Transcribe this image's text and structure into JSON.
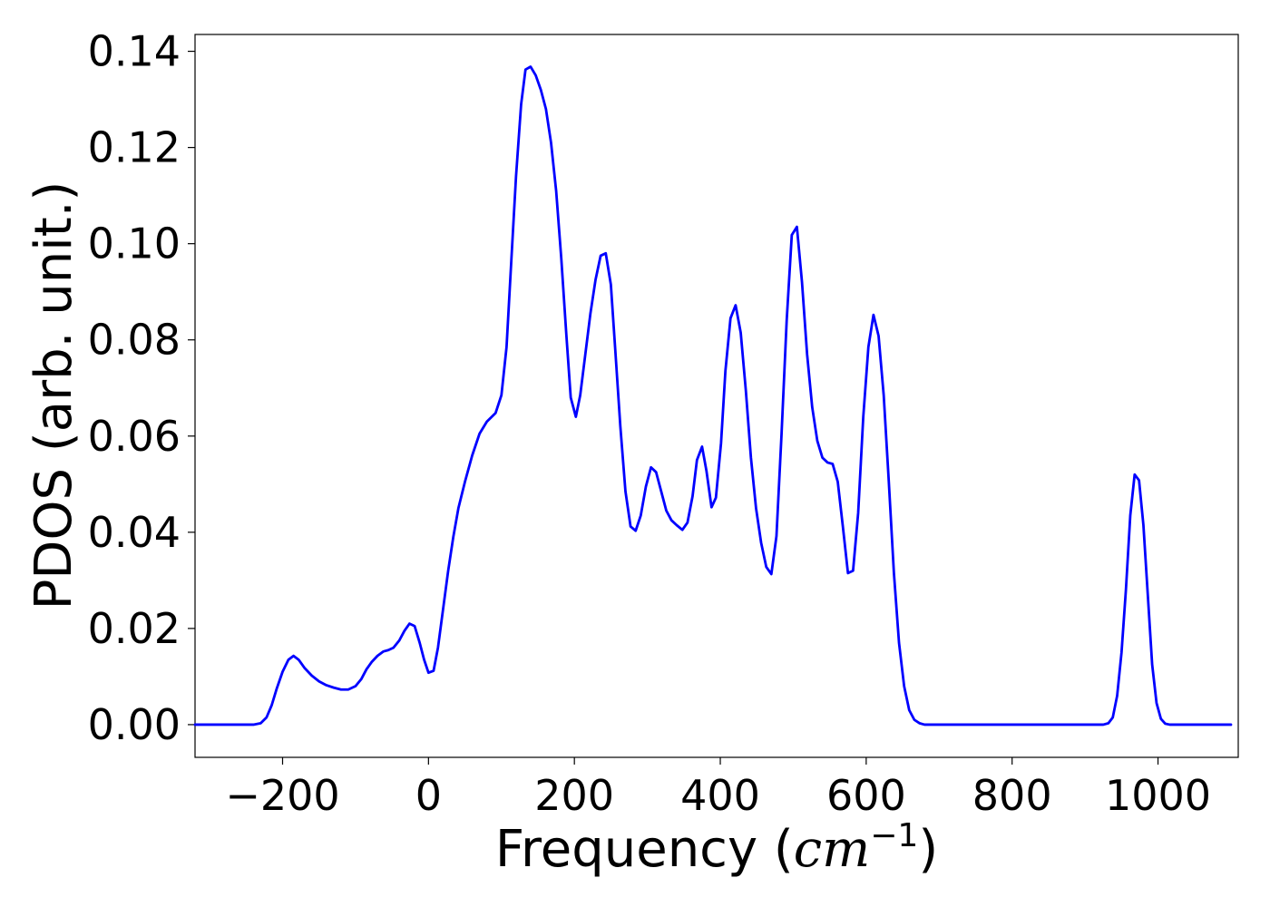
{
  "chart_data": {
    "type": "line",
    "title": "",
    "xlabel_text": "Frequency (",
    "xlabel_math": "cm",
    "xlabel_sup": "−1",
    "xlabel_close": ")",
    "ylabel": "PDOS (arb. unit.)",
    "xlim": [
      -320,
      1110
    ],
    "ylim": [
      -0.0068,
      0.1435
    ],
    "grid": false,
    "line_color": "#0000ff",
    "xticks": [
      {
        "value": -200,
        "label": "−200"
      },
      {
        "value": 0,
        "label": "0"
      },
      {
        "value": 200,
        "label": "200"
      },
      {
        "value": 400,
        "label": "400"
      },
      {
        "value": 600,
        "label": "600"
      },
      {
        "value": 800,
        "label": "800"
      },
      {
        "value": 1000,
        "label": "1000"
      }
    ],
    "yticks": [
      {
        "value": 0.0,
        "label": "0.00"
      },
      {
        "value": 0.02,
        "label": "0.02"
      },
      {
        "value": 0.04,
        "label": "0.04"
      },
      {
        "value": 0.06,
        "label": "0.06"
      },
      {
        "value": 0.08,
        "label": "0.08"
      },
      {
        "value": 0.1,
        "label": "0.10"
      },
      {
        "value": 0.12,
        "label": "0.12"
      },
      {
        "value": 0.14,
        "label": "0.14"
      }
    ],
    "series": [
      {
        "points": [
          [
            -320,
            0
          ],
          [
            -240,
            0
          ],
          [
            -230,
            0.0003
          ],
          [
            -222,
            0.0015
          ],
          [
            -215,
            0.004
          ],
          [
            -208,
            0.0075
          ],
          [
            -200,
            0.011
          ],
          [
            -192,
            0.0135
          ],
          [
            -185,
            0.0143
          ],
          [
            -178,
            0.0135
          ],
          [
            -170,
            0.0118
          ],
          [
            -160,
            0.0102
          ],
          [
            -150,
            0.009
          ],
          [
            -140,
            0.0082
          ],
          [
            -130,
            0.0077
          ],
          [
            -120,
            0.0073
          ],
          [
            -110,
            0.0073
          ],
          [
            -100,
            0.008
          ],
          [
            -92,
            0.0095
          ],
          [
            -85,
            0.0115
          ],
          [
            -78,
            0.013
          ],
          [
            -70,
            0.0143
          ],
          [
            -62,
            0.0152
          ],
          [
            -55,
            0.0155
          ],
          [
            -48,
            0.016
          ],
          [
            -40,
            0.0175
          ],
          [
            -33,
            0.0195
          ],
          [
            -26,
            0.021
          ],
          [
            -19,
            0.0205
          ],
          [
            -12,
            0.017
          ],
          [
            -6,
            0.0135
          ],
          [
            0,
            0.0108
          ],
          [
            7,
            0.0112
          ],
          [
            13,
            0.016
          ],
          [
            20,
            0.024
          ],
          [
            27,
            0.032
          ],
          [
            34,
            0.039
          ],
          [
            41,
            0.045
          ],
          [
            50,
            0.0505
          ],
          [
            60,
            0.056
          ],
          [
            70,
            0.0605
          ],
          [
            80,
            0.063
          ],
          [
            92,
            0.0648
          ],
          [
            100,
            0.0685
          ],
          [
            107,
            0.0785
          ],
          [
            113,
            0.095
          ],
          [
            120,
            0.114
          ],
          [
            127,
            0.129
          ],
          [
            133,
            0.1362
          ],
          [
            140,
            0.1368
          ],
          [
            147,
            0.135
          ],
          [
            154,
            0.132
          ],
          [
            161,
            0.128
          ],
          [
            168,
            0.121
          ],
          [
            175,
            0.111
          ],
          [
            182,
            0.097
          ],
          [
            189,
            0.081
          ],
          [
            195,
            0.068
          ],
          [
            202,
            0.064
          ],
          [
            208,
            0.0685
          ],
          [
            215,
            0.077
          ],
          [
            222,
            0.0855
          ],
          [
            229,
            0.0925
          ],
          [
            236,
            0.0975
          ],
          [
            243,
            0.098
          ],
          [
            250,
            0.0915
          ],
          [
            256,
            0.078
          ],
          [
            263,
            0.062
          ],
          [
            270,
            0.0485
          ],
          [
            277,
            0.0412
          ],
          [
            284,
            0.0403
          ],
          [
            291,
            0.0435
          ],
          [
            298,
            0.0495
          ],
          [
            305,
            0.0535
          ],
          [
            312,
            0.0525
          ],
          [
            319,
            0.0485
          ],
          [
            326,
            0.0445
          ],
          [
            333,
            0.0425
          ],
          [
            340,
            0.0415
          ],
          [
            348,
            0.0405
          ],
          [
            355,
            0.042
          ],
          [
            362,
            0.0475
          ],
          [
            368,
            0.055
          ],
          [
            375,
            0.0578
          ],
          [
            381,
            0.0528
          ],
          [
            388,
            0.0452
          ],
          [
            394,
            0.0472
          ],
          [
            401,
            0.0585
          ],
          [
            407,
            0.0735
          ],
          [
            414,
            0.0845
          ],
          [
            421,
            0.0872
          ],
          [
            428,
            0.0815
          ],
          [
            435,
            0.0695
          ],
          [
            442,
            0.0555
          ],
          [
            449,
            0.045
          ],
          [
            456,
            0.0378
          ],
          [
            463,
            0.0328
          ],
          [
            470,
            0.0313
          ],
          [
            477,
            0.0392
          ],
          [
            484,
            0.0605
          ],
          [
            491,
            0.084
          ],
          [
            498,
            0.1018
          ],
          [
            505,
            0.1035
          ],
          [
            512,
            0.092
          ],
          [
            519,
            0.077
          ],
          [
            526,
            0.066
          ],
          [
            533,
            0.059
          ],
          [
            540,
            0.0555
          ],
          [
            547,
            0.0545
          ],
          [
            554,
            0.0542
          ],
          [
            561,
            0.0505
          ],
          [
            568,
            0.0412
          ],
          [
            575,
            0.0315
          ],
          [
            582,
            0.032
          ],
          [
            589,
            0.044
          ],
          [
            596,
            0.064
          ],
          [
            603,
            0.0785
          ],
          [
            610,
            0.0852
          ],
          [
            617,
            0.0808
          ],
          [
            624,
            0.0685
          ],
          [
            631,
            0.0505
          ],
          [
            638,
            0.0315
          ],
          [
            645,
            0.017
          ],
          [
            652,
            0.008
          ],
          [
            659,
            0.003
          ],
          [
            666,
            0.001
          ],
          [
            673,
            0.0003
          ],
          [
            680,
            0
          ],
          [
            925,
            0
          ],
          [
            932,
            0.0003
          ],
          [
            938,
            0.0015
          ],
          [
            944,
            0.006
          ],
          [
            950,
            0.015
          ],
          [
            956,
            0.028
          ],
          [
            962,
            0.0435
          ],
          [
            968,
            0.052
          ],
          [
            974,
            0.0508
          ],
          [
            980,
            0.0415
          ],
          [
            986,
            0.027
          ],
          [
            992,
            0.0125
          ],
          [
            998,
            0.0045
          ],
          [
            1004,
            0.0012
          ],
          [
            1010,
            0.0002
          ],
          [
            1016,
            0
          ],
          [
            1100,
            0
          ]
        ]
      }
    ]
  }
}
